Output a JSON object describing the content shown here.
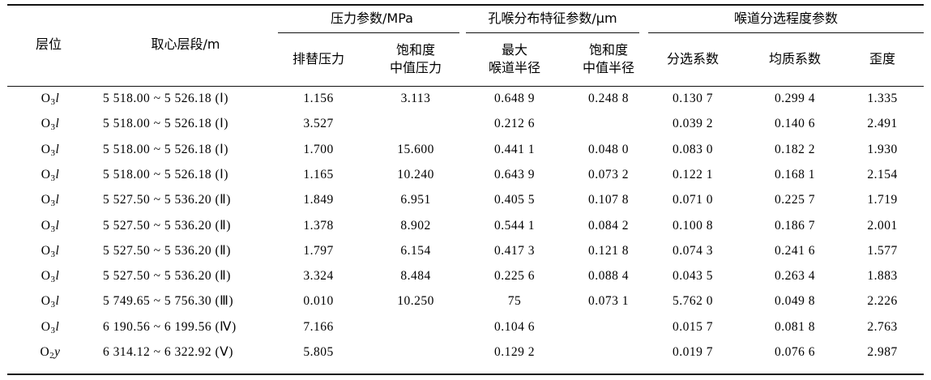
{
  "header": {
    "layer": "层位",
    "depth": "取心层段/m",
    "group_pressure": "压力参数/MPa",
    "group_throat": "孔喉分布特征参数/μm",
    "group_sorting": "喉道分选程度参数",
    "sub": {
      "displacement_l1": "排替压力",
      "sat_median_l1": "饱和度",
      "sat_median_l2": "中值压力",
      "max_throat_l1": "最大",
      "max_throat_l2": "喉道半径",
      "sat_radius_l1": "饱和度",
      "sat_radius_l2": "中值半径",
      "sorting": "分选系数",
      "homogeneity": "均质系数",
      "skewness": "歪度"
    }
  },
  "rows": [
    {
      "layer_base": "O",
      "layer_sub": "3",
      "layer_suffix": "l",
      "depth": "5 518.00 ~ 5 526.18 (Ⅰ)",
      "displacement": "1.156",
      "sat_median_p": "3.113",
      "max_throat": "0.648 9",
      "sat_median_r": "0.248 8",
      "sorting": "0.130 7",
      "homog": "0.299 4",
      "skew": "1.335"
    },
    {
      "layer_base": "O",
      "layer_sub": "3",
      "layer_suffix": "l",
      "depth": "5 518.00 ~ 5 526.18 (Ⅰ)",
      "displacement": "3.527",
      "sat_median_p": "",
      "max_throat": "0.212 6",
      "sat_median_r": "",
      "sorting": "0.039 2",
      "homog": "0.140 6",
      "skew": "2.491"
    },
    {
      "layer_base": "O",
      "layer_sub": "3",
      "layer_suffix": "l",
      "depth": "5 518.00 ~ 5 526.18 (Ⅰ)",
      "displacement": "1.700",
      "sat_median_p": "15.600",
      "max_throat": "0.441 1",
      "sat_median_r": "0.048 0",
      "sorting": "0.083 0",
      "homog": "0.182 2",
      "skew": "1.930"
    },
    {
      "layer_base": "O",
      "layer_sub": "3",
      "layer_suffix": "l",
      "depth": "5 518.00 ~ 5 526.18 (Ⅰ)",
      "displacement": "1.165",
      "sat_median_p": "10.240",
      "max_throat": "0.643 9",
      "sat_median_r": "0.073 2",
      "sorting": "0.122 1",
      "homog": "0.168 1",
      "skew": "2.154"
    },
    {
      "layer_base": "O",
      "layer_sub": "3",
      "layer_suffix": "l",
      "depth": "5 527.50 ~ 5 536.20 (Ⅱ)",
      "displacement": "1.849",
      "sat_median_p": "6.951",
      "max_throat": "0.405 5",
      "sat_median_r": "0.107 8",
      "sorting": "0.071 0",
      "homog": "0.225 7",
      "skew": "1.719"
    },
    {
      "layer_base": "O",
      "layer_sub": "3",
      "layer_suffix": "l",
      "depth": "5 527.50 ~ 5 536.20 (Ⅱ)",
      "displacement": "1.378",
      "sat_median_p": "8.902",
      "max_throat": "0.544 1",
      "sat_median_r": "0.084 2",
      "sorting": "0.100 8",
      "homog": "0.186 7",
      "skew": "2.001"
    },
    {
      "layer_base": "O",
      "layer_sub": "3",
      "layer_suffix": "l",
      "depth": "5 527.50 ~ 5 536.20 (Ⅱ)",
      "displacement": "1.797",
      "sat_median_p": "6.154",
      "max_throat": "0.417 3",
      "sat_median_r": "0.121 8",
      "sorting": "0.074 3",
      "homog": "0.241 6",
      "skew": "1.577"
    },
    {
      "layer_base": "O",
      "layer_sub": "3",
      "layer_suffix": "l",
      "depth": "5 527.50 ~ 5 536.20 (Ⅱ)",
      "displacement": "3.324",
      "sat_median_p": "8.484",
      "max_throat": "0.225 6",
      "sat_median_r": "0.088 4",
      "sorting": "0.043 5",
      "homog": "0.263 4",
      "skew": "1.883"
    },
    {
      "layer_base": "O",
      "layer_sub": "3",
      "layer_suffix": "l",
      "depth": "5 749.65 ~ 5 756.30 (Ⅲ)",
      "displacement": "0.010",
      "sat_median_p": "10.250",
      "max_throat": "75",
      "sat_median_r": "0.073 1",
      "sorting": "5.762 0",
      "homog": "0.049 8",
      "skew": "2.226"
    },
    {
      "layer_base": "O",
      "layer_sub": "3",
      "layer_suffix": "l",
      "depth": "6 190.56 ~ 6 199.56 (Ⅳ)",
      "displacement": "7.166",
      "sat_median_p": "",
      "max_throat": "0.104 6",
      "sat_median_r": "",
      "sorting": "0.015 7",
      "homog": "0.081 8",
      "skew": "2.763"
    },
    {
      "layer_base": "O",
      "layer_sub": "2",
      "layer_suffix": "y",
      "depth": "6 314.12 ~ 6 322.92 (Ⅴ)",
      "displacement": "5.805",
      "sat_median_p": "",
      "max_throat": "0.129 2",
      "sat_median_r": "",
      "sorting": "0.019 7",
      "homog": "0.076 6",
      "skew": "2.987"
    }
  ]
}
